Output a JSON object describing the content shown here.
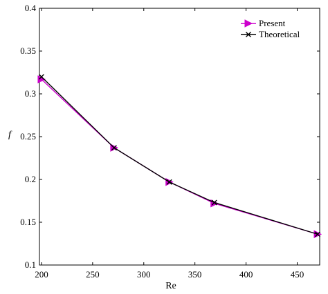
{
  "chart_data": {
    "type": "line",
    "xlabel": "Re",
    "ylabel": "f",
    "xlim": [
      198,
      472
    ],
    "ylim": [
      0.1,
      0.4
    ],
    "xticks": [
      200,
      250,
      300,
      350,
      400,
      450
    ],
    "yticks": [
      0.1,
      0.15,
      0.2,
      0.25,
      0.3,
      0.35,
      0.4
    ],
    "grid": false,
    "legend_position": "top-right",
    "series": [
      {
        "name": "Present",
        "color": "#cc00cc",
        "marker": "triangle-right",
        "x": [
          200,
          271,
          325,
          369,
          470
        ],
        "y": [
          0.317,
          0.237,
          0.197,
          0.172,
          0.136
        ]
      },
      {
        "name": "Theoretical",
        "color": "#000000",
        "marker": "x",
        "x": [
          200,
          271,
          325,
          369,
          470
        ],
        "y": [
          0.32,
          0.237,
          0.197,
          0.173,
          0.136
        ]
      }
    ]
  }
}
